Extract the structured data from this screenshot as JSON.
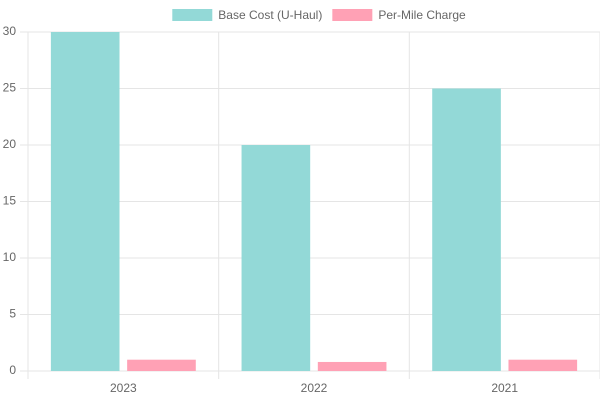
{
  "chart_data": {
    "type": "bar",
    "categories": [
      "2023",
      "2022",
      "2021"
    ],
    "series": [
      {
        "name": "Base Cost (U-Haul)",
        "color": "#93d9d7",
        "values": [
          30,
          20,
          25
        ]
      },
      {
        "name": "Per-Mile Charge",
        "color": "#ffa1b5",
        "values": [
          1,
          0.8,
          1
        ]
      }
    ],
    "ylim": [
      0,
      30
    ],
    "yticks": [
      0,
      5,
      10,
      15,
      20,
      25,
      30
    ],
    "grid": true,
    "legend": "top"
  }
}
